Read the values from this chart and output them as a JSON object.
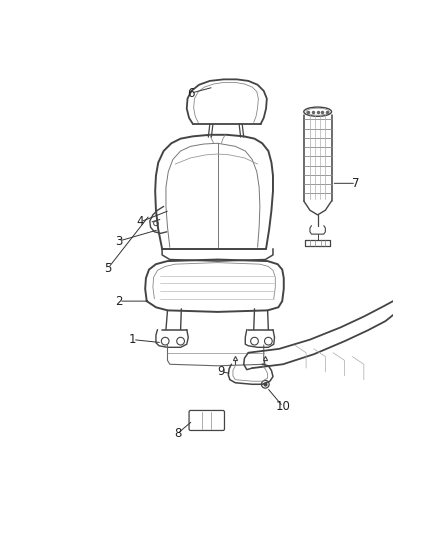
{
  "bg_color": "#ffffff",
  "line_color": "#444444",
  "label_color": "#222222",
  "lw_main": 1.2,
  "lw_detail": 0.65,
  "lw_inner": 0.55
}
